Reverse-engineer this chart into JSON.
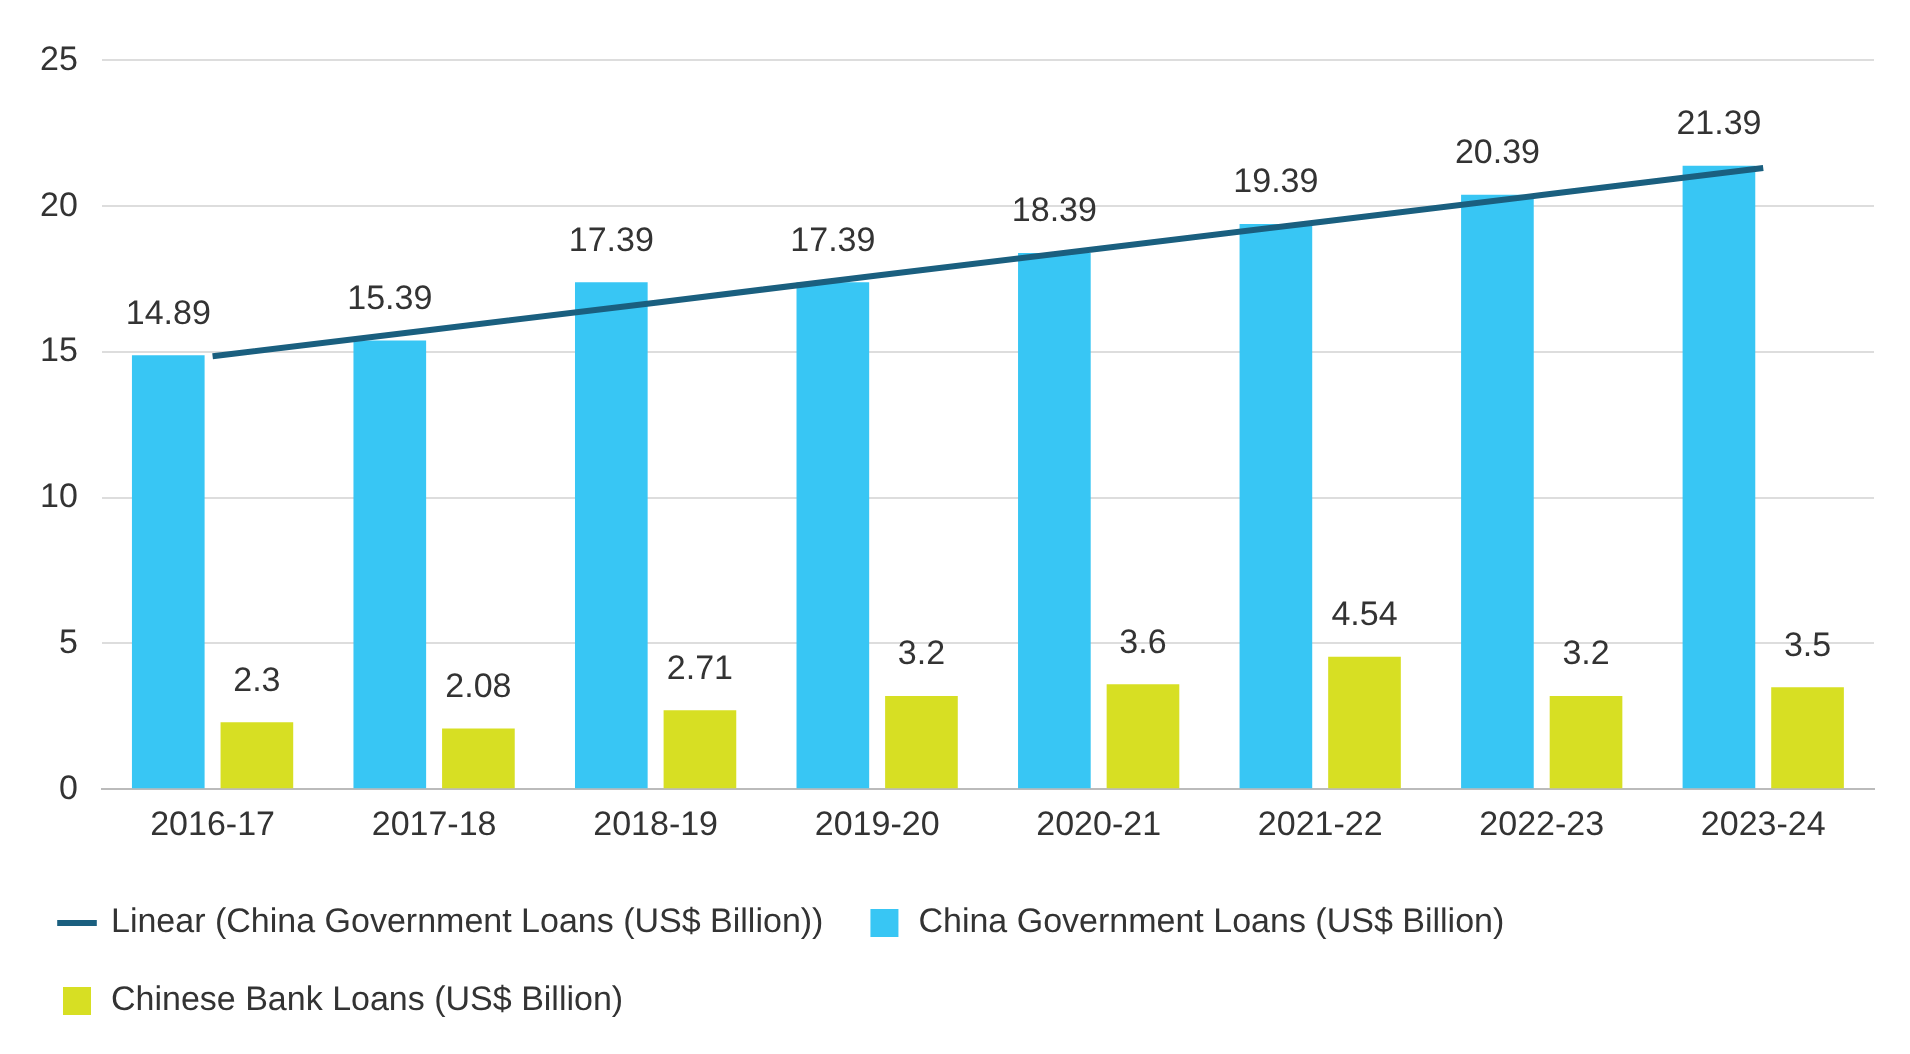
{
  "chart_data": {
    "type": "bar",
    "categories": [
      "2016-17",
      "2017-18",
      "2018-19",
      "2019-20",
      "2020-21",
      "2021-22",
      "2022-23",
      "2023-24"
    ],
    "series": [
      {
        "name": "China Government Loans (US$ Billion)",
        "color": "#38c6f4",
        "values": [
          14.89,
          15.39,
          17.39,
          17.39,
          18.39,
          19.39,
          20.39,
          21.39
        ],
        "value_labels": [
          "14.89",
          "15.39",
          "17.39",
          "17.39",
          "18.39",
          "19.39",
          "20.39",
          "21.39"
        ]
      },
      {
        "name": "Chinese Bank Loans (US$ Billion)",
        "color": "#d7df23",
        "values": [
          2.3,
          2.08,
          2.71,
          3.2,
          3.6,
          4.54,
          3.2,
          3.5
        ],
        "value_labels": [
          "2.3",
          "2.08",
          "2.71",
          "3.2",
          "3.6",
          "4.54",
          "3.2",
          "3.5"
        ]
      },
      {
        "name": "Linear (China Government Loans (US$ Billion))",
        "type": "line",
        "color": "#1a5f7f",
        "values": [
          14.85,
          15.77,
          16.69,
          17.62,
          18.54,
          19.46,
          20.38,
          21.31
        ]
      }
    ],
    "ylim": [
      0,
      25
    ],
    "yticks": [
      0,
      5,
      10,
      15,
      20,
      25
    ],
    "grid": "y",
    "legend": "bottom",
    "marker": "none",
    "line_style": "solid"
  }
}
